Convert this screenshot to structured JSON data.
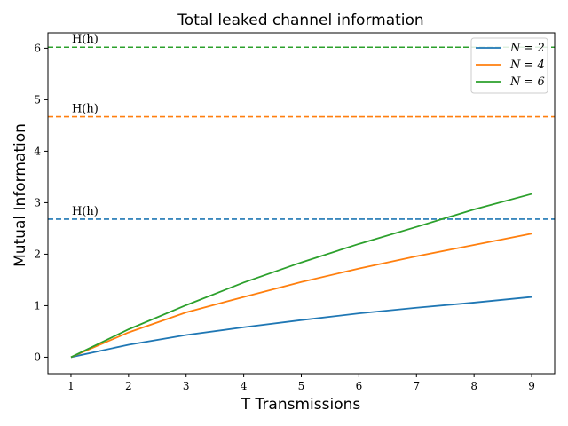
{
  "chart_data": {
    "type": "line",
    "title": "Total leaked channel information",
    "xlabel": "T  Transmissions",
    "ylabel": "Mutual Information",
    "x": [
      1,
      2,
      3,
      4,
      5,
      6,
      7,
      8,
      9
    ],
    "xlim": [
      0.6,
      9.4
    ],
    "ylim": [
      -0.32,
      6.3
    ],
    "xticks": [
      "1",
      "2",
      "3",
      "4",
      "5",
      "6",
      "7",
      "8",
      "9"
    ],
    "yticks": [
      "0",
      "1",
      "2",
      "3",
      "4",
      "5",
      "6"
    ],
    "grid": false,
    "legend": "top-right",
    "series": [
      {
        "name": "N = 2",
        "color": "#1f77b4",
        "values": [
          0.0,
          0.24,
          0.43,
          0.58,
          0.72,
          0.85,
          0.96,
          1.06,
          1.17
        ]
      },
      {
        "name": "N = 4",
        "color": "#ff7f0e",
        "values": [
          0.0,
          0.48,
          0.87,
          1.17,
          1.46,
          1.72,
          1.96,
          2.18,
          2.4
        ]
      },
      {
        "name": "N = 6",
        "color": "#2ca02c",
        "values": [
          0.0,
          0.54,
          1.01,
          1.45,
          1.84,
          2.2,
          2.53,
          2.87,
          3.17
        ]
      }
    ],
    "reference_lines": [
      {
        "label": "H(h)",
        "value": 2.68,
        "color": "#1f77b4",
        "style": "dashed"
      },
      {
        "label": "H(h)",
        "value": 4.67,
        "color": "#ff7f0e",
        "style": "dashed"
      },
      {
        "label": "H(h)",
        "value": 6.02,
        "color": "#2ca02c",
        "style": "dashed"
      }
    ]
  }
}
